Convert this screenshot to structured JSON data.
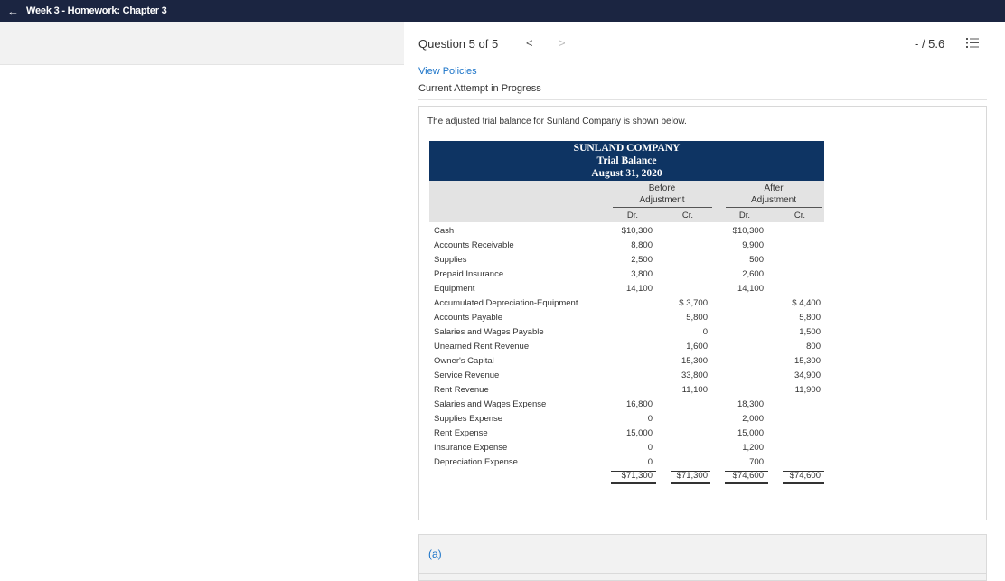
{
  "topbar": {
    "title": "Week 3 - Homework: Chapter 3"
  },
  "question": {
    "label": "Question 5 of 5",
    "prev": "<",
    "next": ">",
    "score": "- / 5.6"
  },
  "links": {
    "view_policies": "View Policies",
    "attempt_status": "Current Attempt in Progress"
  },
  "prompt": "The adjusted trial balance for Sunland Company is shown below.",
  "table": {
    "company": "SUNLAND COMPANY",
    "report": "Trial Balance",
    "date": "August 31, 2020",
    "group_before_1": "Before",
    "group_before_2": "Adjustment",
    "group_after_1": "After",
    "group_after_2": "Adjustment",
    "dr": "Dr.",
    "cr": "Cr.",
    "rows": [
      {
        "account": "Cash",
        "b_dr": "$10,300",
        "b_cr": "",
        "a_dr": "$10,300",
        "a_cr": ""
      },
      {
        "account": "Accounts Receivable",
        "b_dr": "8,800",
        "b_cr": "",
        "a_dr": "9,900",
        "a_cr": ""
      },
      {
        "account": "Supplies",
        "b_dr": "2,500",
        "b_cr": "",
        "a_dr": "500",
        "a_cr": ""
      },
      {
        "account": "Prepaid Insurance",
        "b_dr": "3,800",
        "b_cr": "",
        "a_dr": "2,600",
        "a_cr": ""
      },
      {
        "account": "Equipment",
        "b_dr": "14,100",
        "b_cr": "",
        "a_dr": "14,100",
        "a_cr": ""
      },
      {
        "account": "Accumulated Depreciation-Equipment",
        "b_dr": "",
        "b_cr": "$ 3,700",
        "a_dr": "",
        "a_cr": "$ 4,400"
      },
      {
        "account": "Accounts Payable",
        "b_dr": "",
        "b_cr": "5,800",
        "a_dr": "",
        "a_cr": "5,800"
      },
      {
        "account": "Salaries and Wages Payable",
        "b_dr": "",
        "b_cr": "0",
        "a_dr": "",
        "a_cr": "1,500"
      },
      {
        "account": "Unearned Rent Revenue",
        "b_dr": "",
        "b_cr": "1,600",
        "a_dr": "",
        "a_cr": "800"
      },
      {
        "account": "Owner's Capital",
        "b_dr": "",
        "b_cr": "15,300",
        "a_dr": "",
        "a_cr": "15,300"
      },
      {
        "account": "Service Revenue",
        "b_dr": "",
        "b_cr": "33,800",
        "a_dr": "",
        "a_cr": "34,900"
      },
      {
        "account": "Rent Revenue",
        "b_dr": "",
        "b_cr": "11,100",
        "a_dr": "",
        "a_cr": "11,900"
      },
      {
        "account": "Salaries and Wages Expense",
        "b_dr": "16,800",
        "b_cr": "",
        "a_dr": "18,300",
        "a_cr": ""
      },
      {
        "account": "Supplies Expense",
        "b_dr": "0",
        "b_cr": "",
        "a_dr": "2,000",
        "a_cr": ""
      },
      {
        "account": "Rent Expense",
        "b_dr": "15,000",
        "b_cr": "",
        "a_dr": "15,000",
        "a_cr": ""
      },
      {
        "account": "Insurance Expense",
        "b_dr": "0",
        "b_cr": "",
        "a_dr": "1,200",
        "a_cr": ""
      },
      {
        "account": "Depreciation Expense",
        "b_dr": "0",
        "b_cr": "",
        "a_dr": "700",
        "a_cr": ""
      }
    ],
    "totals": {
      "b_dr": "$71,300",
      "b_cr": "$71,300",
      "a_dr": "$74,600",
      "a_cr": "$74,600"
    }
  },
  "part": {
    "label": "(a)"
  }
}
